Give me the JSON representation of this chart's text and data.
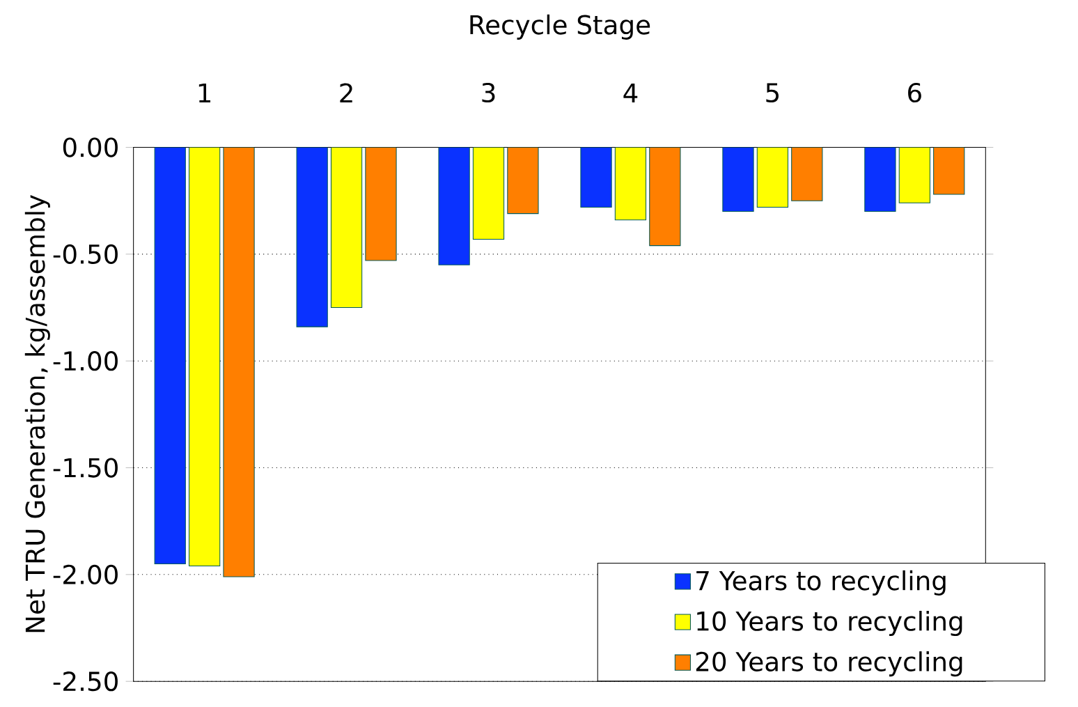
{
  "chart_data": {
    "type": "bar",
    "xlabel": "Recycle Stage",
    "ylabel": "Net TRU Generation, kg/assembly",
    "categories": [
      "1",
      "2",
      "3",
      "4",
      "5",
      "6"
    ],
    "series": [
      {
        "name": "7 Years to recycling",
        "color": "#0a32ff",
        "values": [
          -1.95,
          -0.84,
          -0.55,
          -0.28,
          -0.3,
          -0.3
        ]
      },
      {
        "name": "10 Years to recycling",
        "color": "#ffff00",
        "values": [
          -1.96,
          -0.75,
          -0.43,
          -0.34,
          -0.28,
          -0.26
        ]
      },
      {
        "name": "20 Years to recycling",
        "color": "#ff7f00",
        "values": [
          -2.01,
          -0.53,
          -0.31,
          -0.46,
          -0.25,
          -0.22
        ]
      }
    ],
    "ylim": [
      -2.5,
      0
    ],
    "yticks": [
      {
        "value": 0,
        "label": "0.00"
      },
      {
        "value": -0.5,
        "label": "-0.50"
      },
      {
        "value": -1,
        "label": "-1.00"
      },
      {
        "value": -1.5,
        "label": "-1.50"
      },
      {
        "value": -2,
        "label": "-2.00"
      },
      {
        "value": -2.5,
        "label": "-2.50"
      }
    ],
    "grid": "y",
    "legend": "bottom right"
  }
}
